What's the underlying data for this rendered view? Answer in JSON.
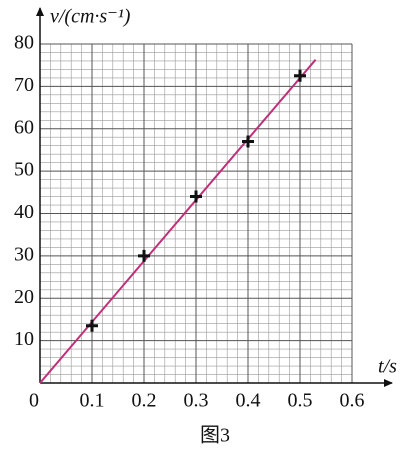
{
  "chart_data": {
    "type": "scatter",
    "y_label": "v/(cm·s⁻¹)",
    "x_label": "t/s",
    "caption": "图3",
    "x": [
      0.1,
      0.2,
      0.3,
      0.4,
      0.5
    ],
    "values": [
      13.5,
      30,
      44,
      57,
      72.5
    ],
    "color": "#111111",
    "fit_line": {
      "x": [
        0,
        0.53
      ],
      "values": [
        0,
        76.3
      ],
      "color": "#c0307a"
    },
    "xlim": [
      0,
      0.6
    ],
    "ylim": [
      0,
      80
    ],
    "xticks": [
      0,
      0.1,
      0.2,
      0.3,
      0.4,
      0.5,
      0.6
    ],
    "yticks": [
      10,
      20,
      30,
      40,
      50,
      60,
      70,
      80
    ],
    "grid": true,
    "minor_divisions": 5
  }
}
